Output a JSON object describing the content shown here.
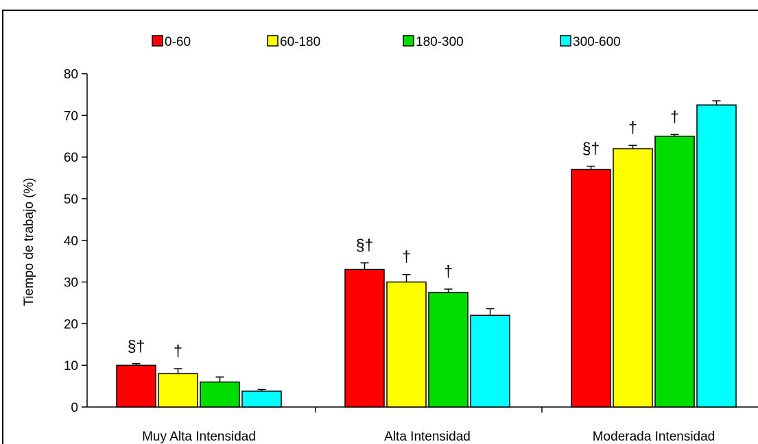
{
  "chart_data": {
    "type": "bar",
    "title": "",
    "xlabel": "",
    "ylabel": "Tiempo de trabajo (%)",
    "ylim": [
      0,
      80
    ],
    "yticks": [
      0,
      10,
      20,
      30,
      40,
      50,
      60,
      70,
      80
    ],
    "legend_position": "top",
    "categories": [
      "Muy Alta Intensidad",
      "Alta Intensidad",
      "Moderada Intensidad"
    ],
    "series": [
      {
        "name": "0-60",
        "color": "#ff0000",
        "values": [
          10,
          33,
          57
        ],
        "errors": [
          0.4,
          1.6,
          0.8
        ],
        "annotations": [
          "§†",
          "§†",
          "§†"
        ]
      },
      {
        "name": "60-180",
        "color": "#ffff00",
        "values": [
          8,
          30,
          62
        ],
        "errors": [
          1.2,
          1.8,
          0.8
        ],
        "annotations": [
          "†",
          "†",
          "†"
        ]
      },
      {
        "name": "180-300",
        "color": "#00dd00",
        "values": [
          6,
          27.5,
          65
        ],
        "errors": [
          1.2,
          0.8,
          0.4
        ],
        "annotations": [
          "",
          "†",
          "†"
        ]
      },
      {
        "name": "300-600",
        "color": "#00ffff",
        "values": [
          3.8,
          22,
          72.5
        ],
        "errors": [
          0.4,
          1.6,
          1.0
        ],
        "annotations": [
          "",
          "",
          ""
        ]
      }
    ]
  }
}
